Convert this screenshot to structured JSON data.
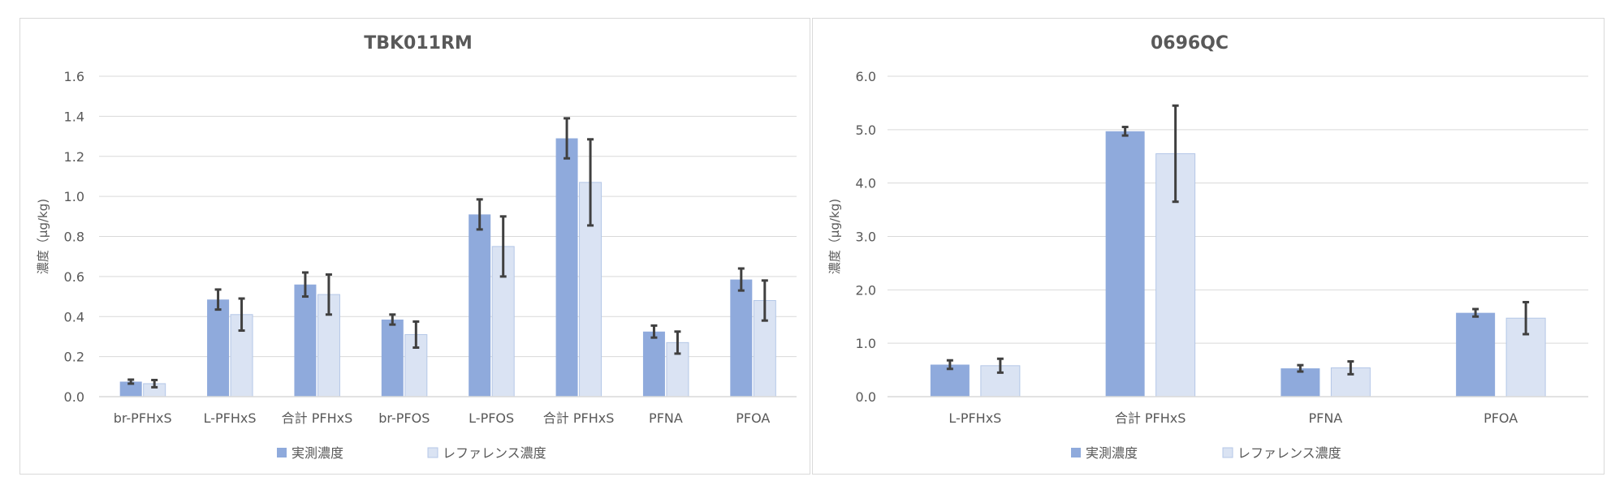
{
  "colors": {
    "measured": "#8faadc",
    "reference": "#dae3f3",
    "error_bar": "#404040",
    "grid": "#d9d9d9",
    "text": "#595959"
  },
  "chart_data": [
    {
      "type": "bar",
      "title": "TBK011RM",
      "xlabel": "",
      "ylabel": "濃度（μg/kg)",
      "ylim": [
        0,
        1.6
      ],
      "yticks": [
        "0.0",
        "0.2",
        "0.4",
        "0.6",
        "0.8",
        "1.0",
        "1.2",
        "1.4",
        "1.6"
      ],
      "categories": [
        "br-PFHxS",
        "L-PFHxS",
        "合計 PFHxS",
        "br-PFOS",
        "L-PFOS",
        "合計 PFHxS",
        "PFNA",
        "PFOA"
      ],
      "series": [
        {
          "name": "実測濃度",
          "values": [
            0.075,
            0.485,
            0.56,
            0.385,
            0.91,
            1.29,
            0.325,
            0.585
          ],
          "errors": [
            0.01,
            0.05,
            0.06,
            0.025,
            0.075,
            0.1,
            0.03,
            0.055
          ]
        },
        {
          "name": "レファレンス濃度",
          "values": [
            0.065,
            0.41,
            0.51,
            0.31,
            0.75,
            1.07,
            0.27,
            0.48
          ],
          "errors": [
            0.018,
            0.08,
            0.1,
            0.065,
            0.15,
            0.215,
            0.055,
            0.1
          ]
        }
      ],
      "legend": "bottom",
      "grid": true
    },
    {
      "type": "bar",
      "title": "0696QC",
      "xlabel": "",
      "ylabel": "濃度（μg/kg)",
      "ylim": [
        0,
        6
      ],
      "yticks": [
        "0.0",
        "1.0",
        "2.0",
        "3.0",
        "4.0",
        "5.0",
        "6.0"
      ],
      "categories": [
        "L-PFHxS",
        "合計 PFHxS",
        "PFNA",
        "PFOA"
      ],
      "series": [
        {
          "name": "実測濃度",
          "values": [
            0.6,
            4.97,
            0.53,
            1.57
          ],
          "errors": [
            0.08,
            0.08,
            0.06,
            0.07
          ]
        },
        {
          "name": "レファレンス濃度",
          "values": [
            0.58,
            4.55,
            0.54,
            1.47
          ],
          "errors": [
            0.13,
            0.9,
            0.12,
            0.3
          ]
        }
      ],
      "legend": "bottom",
      "grid": true
    }
  ]
}
